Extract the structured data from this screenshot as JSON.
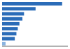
{
  "chart_data": {
    "type": "bar",
    "orientation": "horizontal",
    "categories": [
      null,
      null,
      null,
      null,
      null,
      null,
      null,
      null,
      null
    ],
    "values": [
      260,
      145,
      95,
      88,
      75,
      68,
      62,
      55,
      15
    ],
    "colors": [
      "#2b6cb8",
      "#2b6cb8",
      "#2b6cb8",
      "#2b6cb8",
      "#2b6cb8",
      "#2b6cb8",
      "#2b6cb8",
      "#2b6cb8",
      "#8ab4e0"
    ],
    "xlim": [
      0,
      285
    ],
    "tick_labels": false
  }
}
